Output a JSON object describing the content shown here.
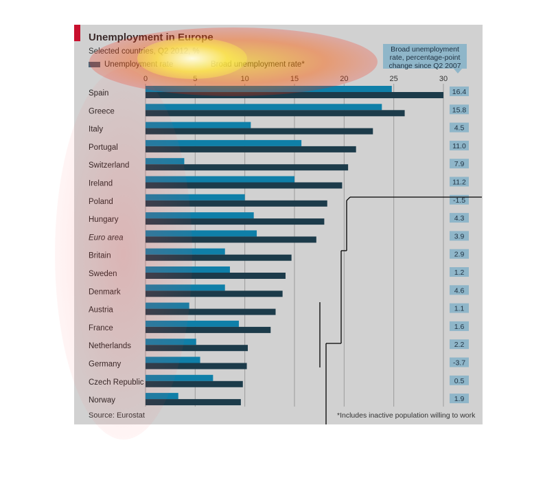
{
  "chart_data": {
    "type": "bar",
    "orientation": "horizontal",
    "title": "Unemployment in Europe",
    "subtitle": "Selected countries, Q2 2012, %",
    "xlim": [
      0,
      30
    ],
    "x_ticks": [
      0,
      5,
      10,
      15,
      20,
      25,
      30
    ],
    "grid": true,
    "legend_placement": "top-left",
    "categories": [
      "Spain",
      "Greece",
      "Italy",
      "Portugal",
      "Switzerland",
      "Ireland",
      "Poland",
      "Hungary",
      "Euro area",
      "Britain",
      "Sweden",
      "Denmark",
      "Austria",
      "France",
      "Netherlands",
      "Germany",
      "Czech Republic",
      "Norway"
    ],
    "italic_categories": [
      "Euro area"
    ],
    "series": [
      {
        "name": "Unemployment rate",
        "color": "#0f7fa8",
        "values": [
          24.8,
          23.8,
          10.6,
          15.7,
          3.9,
          15.0,
          10.0,
          10.9,
          11.2,
          8.0,
          8.5,
          8.0,
          4.4,
          9.4,
          5.1,
          5.5,
          6.8,
          3.3
        ]
      },
      {
        "name": "Broad unemployment rate*",
        "color": "#1c3b4a",
        "values": [
          30.0,
          26.1,
          22.9,
          21.2,
          20.4,
          19.8,
          18.3,
          18.0,
          17.2,
          14.7,
          14.1,
          13.8,
          13.1,
          12.6,
          10.3,
          10.2,
          9.8,
          9.6
        ]
      }
    ],
    "change_label": "Broad unemployment rate, percentage-point change since Q2 2007",
    "change_values": [
      "16.4",
      "15.8",
      "4.5",
      "11.0",
      "7.9",
      "11.2",
      "-1.5",
      "4.3",
      "3.9",
      "2.9",
      "1.2",
      "4.6",
      "1.1",
      "1.6",
      "2.2",
      "-3.7",
      "0.5",
      "1.9"
    ],
    "source": "Source: Eurostat",
    "footnote": "*Includes inactive population willing to work"
  },
  "colors": {
    "panel": "#d1d1d1",
    "accent_red": "#c8102e",
    "label_box": "#8fb6c9",
    "legend_unemployment": "#4e6577",
    "legend_broad": "#b9d9c8"
  }
}
